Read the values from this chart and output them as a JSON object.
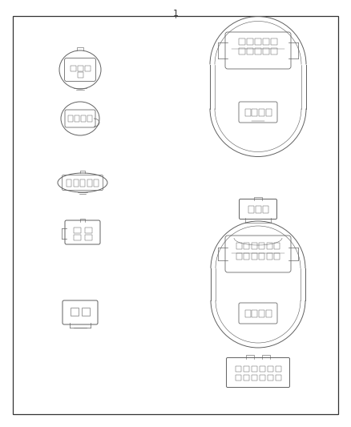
{
  "title_number": "1",
  "background_color": "#ffffff",
  "border_color": "#000000",
  "line_color": "#606060",
  "fig_width": 4.38,
  "fig_height": 5.33,
  "border_lw": 1.0,
  "connector_lw": 0.7
}
